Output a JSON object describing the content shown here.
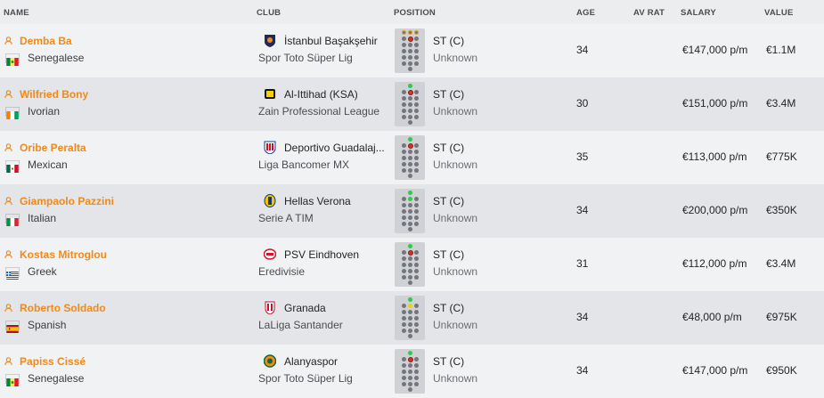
{
  "headers": {
    "name": "NAME",
    "club": "CLUB",
    "position": "POSITION",
    "age": "AGE",
    "av_rat": "AV RAT",
    "salary": "SALARY",
    "value": "VALUE"
  },
  "players": [
    {
      "name": "Demba Ba",
      "nationality": "Senegalese",
      "club": "İstanbul Başakşehir",
      "league": "Spor Toto Süper Lig",
      "position": "ST (C)",
      "role": "Unknown",
      "age": "34",
      "salary": "€147,000 p/m",
      "value": "€1.1M",
      "flag": "senegal",
      "badge": "basaksehir",
      "pitch": "three-strikers-amber"
    },
    {
      "name": "Wilfried Bony",
      "nationality": "Ivorian",
      "club": "Al-Ittihad (KSA)",
      "league": "Zain Professional League",
      "position": "ST (C)",
      "role": "Unknown",
      "age": "30",
      "salary": "€151,000 p/m",
      "value": "€3.4M",
      "flag": "ivory-coast",
      "badge": "ittihad",
      "pitch": "striker-red"
    },
    {
      "name": "Oribe Peralta",
      "nationality": "Mexican",
      "club": "Deportivo Guadalaj...",
      "league": "Liga Bancomer MX",
      "position": "ST (C)",
      "role": "Unknown",
      "age": "35",
      "salary": "€113,000 p/m",
      "value": "€775K",
      "flag": "mexico",
      "badge": "guadalajara",
      "pitch": "striker-red"
    },
    {
      "name": "Giampaolo Pazzini",
      "nationality": "Italian",
      "club": "Hellas Verona",
      "league": "Serie A TIM",
      "position": "ST (C)",
      "role": "Unknown",
      "age": "34",
      "salary": "€200,000 p/m",
      "value": "€350K",
      "flag": "italy",
      "badge": "verona",
      "pitch": "striker-green"
    },
    {
      "name": "Kostas Mitroglou",
      "nationality": "Greek",
      "club": "PSV Eindhoven",
      "league": "Eredivisie",
      "position": "ST (C)",
      "role": "Unknown",
      "age": "31",
      "salary": "€112,000 p/m",
      "value": "€3.4M",
      "flag": "greece",
      "badge": "psv",
      "pitch": "striker-red"
    },
    {
      "name": "Roberto Soldado",
      "nationality": "Spanish",
      "club": "Granada",
      "league": "LaLiga Santander",
      "position": "ST (C)",
      "role": "Unknown",
      "age": "34",
      "salary": "€48,000 p/m",
      "value": "€975K",
      "flag": "spain",
      "badge": "granada",
      "pitch": "striker-yellow"
    },
    {
      "name": "Papiss Cissé",
      "nationality": "Senegalese",
      "club": "Alanyaspor",
      "league": "Spor Toto Süper Lig",
      "position": "ST (C)",
      "role": "Unknown",
      "age": "34",
      "salary": "€147,000 p/m",
      "value": "€950K",
      "flag": "senegal",
      "badge": "alanyaspor",
      "pitch": "striker-red"
    }
  ],
  "colors": {
    "name_accent": "#ef8a1b"
  }
}
